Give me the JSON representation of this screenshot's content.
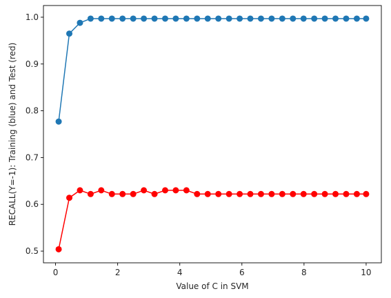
{
  "chart_data": {
    "type": "line",
    "title": "",
    "xlabel": "Value of C in SVM",
    "ylabel": "RECALL(Y=-1): Training (blue) and Test (red)",
    "xlim": [
      -0.39,
      10.49
    ],
    "ylim": [
      0.475,
      1.025
    ],
    "xticks": [
      0,
      2,
      4,
      6,
      8,
      10
    ],
    "xtick_labels": [
      "0",
      "2",
      "4",
      "6",
      "8",
      "10"
    ],
    "yticks": [
      0.5,
      0.6,
      0.7,
      0.8,
      0.9,
      1.0
    ],
    "ytick_labels": [
      "0.5",
      "0.6",
      "0.7",
      "0.8",
      "0.9",
      "1.0"
    ],
    "grid": false,
    "x": [
      0.1,
      0.443,
      0.786,
      1.129,
      1.471,
      1.814,
      2.157,
      2.5,
      2.843,
      3.186,
      3.529,
      3.871,
      4.214,
      4.557,
      4.9,
      5.243,
      5.586,
      5.929,
      6.271,
      6.614,
      6.957,
      7.3,
      7.643,
      7.986,
      8.329,
      8.671,
      9.014,
      9.357,
      9.7,
      10.0
    ],
    "series": [
      {
        "color": "#1f77b4",
        "values": [
          0.777,
          0.965,
          0.988,
          0.997,
          0.997,
          0.997,
          0.997,
          0.997,
          0.997,
          0.997,
          0.997,
          0.997,
          0.997,
          0.997,
          0.997,
          0.997,
          0.997,
          0.997,
          0.997,
          0.997,
          0.997,
          0.997,
          0.997,
          0.997,
          0.997,
          0.997,
          0.997,
          0.997,
          0.997,
          0.997
        ]
      },
      {
        "color": "#ff0000",
        "values": [
          0.504,
          0.614,
          0.63,
          0.622,
          0.63,
          0.622,
          0.622,
          0.622,
          0.63,
          0.622,
          0.63,
          0.63,
          0.63,
          0.622,
          0.622,
          0.622,
          0.622,
          0.622,
          0.622,
          0.622,
          0.622,
          0.622,
          0.622,
          0.622,
          0.622,
          0.622,
          0.622,
          0.622,
          0.622,
          0.622
        ]
      }
    ]
  }
}
